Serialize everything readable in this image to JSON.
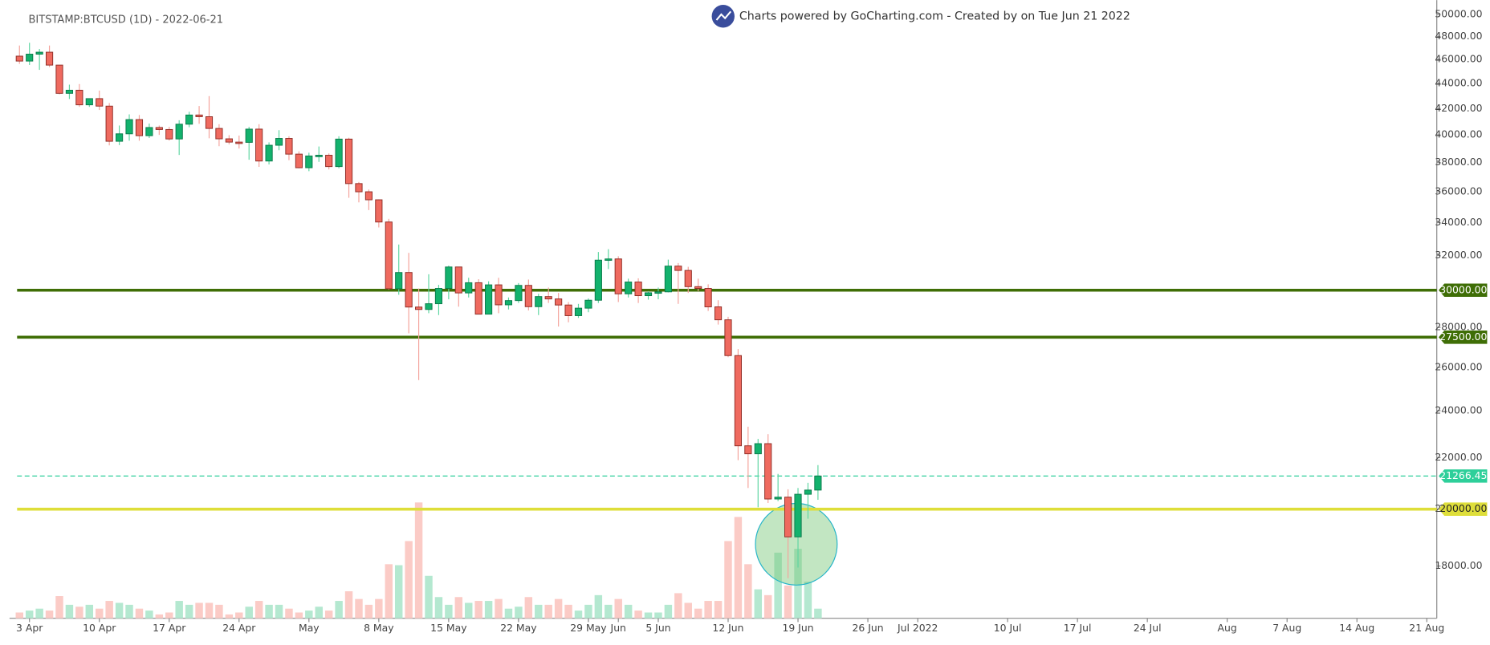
{
  "chart_data": {
    "type": "candlestick",
    "title": "BITSTAMP:BTCUSD (1D) - 2022-06-21",
    "subtitle": "Charts powered by GoCharting.com - Created by  on Tue Jun 21 2022",
    "log_scale": true,
    "up_color": "#13b26d",
    "down_color": "#ef6a5f",
    "x": [
      "2022-04-02",
      "2022-04-03",
      "2022-04-04",
      "2022-04-05",
      "2022-04-06",
      "2022-04-07",
      "2022-04-08",
      "2022-04-09",
      "2022-04-10",
      "2022-04-11",
      "2022-04-12",
      "2022-04-13",
      "2022-04-14",
      "2022-04-15",
      "2022-04-16",
      "2022-04-17",
      "2022-04-18",
      "2022-04-19",
      "2022-04-20",
      "2022-04-21",
      "2022-04-22",
      "2022-04-23",
      "2022-04-24",
      "2022-04-25",
      "2022-04-26",
      "2022-04-27",
      "2022-04-28",
      "2022-04-29",
      "2022-04-30",
      "2022-05-01",
      "2022-05-02",
      "2022-05-03",
      "2022-05-04",
      "2022-05-05",
      "2022-05-06",
      "2022-05-07",
      "2022-05-08",
      "2022-05-09",
      "2022-05-10",
      "2022-05-11",
      "2022-05-12",
      "2022-05-13",
      "2022-05-14",
      "2022-05-15",
      "2022-05-16",
      "2022-05-17",
      "2022-05-18",
      "2022-05-19",
      "2022-05-20",
      "2022-05-21",
      "2022-05-22",
      "2022-05-23",
      "2022-05-24",
      "2022-05-25",
      "2022-05-26",
      "2022-05-27",
      "2022-05-28",
      "2022-05-29",
      "2022-05-30",
      "2022-05-31",
      "2022-06-01",
      "2022-06-02",
      "2022-06-03",
      "2022-06-04",
      "2022-06-05",
      "2022-06-06",
      "2022-06-07",
      "2022-06-08",
      "2022-06-09",
      "2022-06-10",
      "2022-06-11",
      "2022-06-12",
      "2022-06-13",
      "2022-06-14",
      "2022-06-15",
      "2022-06-16",
      "2022-06-17",
      "2022-06-18",
      "2022-06-19",
      "2022-06-20",
      "2022-06-21"
    ],
    "open": [
      46280,
      45860,
      46450,
      46620,
      45520,
      43200,
      43450,
      42290,
      42780,
      42190,
      39530,
      40080,
      41150,
      39940,
      40550,
      40400,
      39700,
      40800,
      41500,
      41370,
      40480,
      39710,
      39470,
      39450,
      40430,
      38110,
      39240,
      39740,
      38600,
      37640,
      38470,
      38520,
      37720,
      39690,
      36550,
      36000,
      35470,
      34040,
      30080,
      31000,
      29080,
      28950,
      29260,
      30100,
      31320,
      29850,
      30420,
      28700,
      30300,
      29200,
      29430,
      30270,
      29100,
      29650,
      29520,
      29190,
      28620,
      29020,
      29450,
      31720,
      31790,
      29800,
      30460,
      29700,
      29860,
      29910,
      31370,
      31120,
      30200,
      30100,
      29090,
      28400,
      26580,
      22490,
      22160,
      22580,
      20380,
      20450,
      19000,
      20560,
      20720
    ],
    "high": [
      47200,
      47440,
      46900,
      47200,
      45520,
      43900,
      43950,
      42800,
      43420,
      42430,
      40700,
      41550,
      41500,
      40850,
      40700,
      40600,
      41100,
      41750,
      42200,
      42980,
      40800,
      39980,
      39950,
      40600,
      40800,
      39450,
      40350,
      39900,
      38800,
      38700,
      39150,
      38650,
      39900,
      39790,
      36660,
      36150,
      35500,
      34240,
      32650,
      32150,
      30100,
      30900,
      30300,
      31400,
      31320,
      30700,
      30620,
      30500,
      30700,
      29600,
      30400,
      30600,
      29800,
      30150,
      29850,
      29350,
      29250,
      29550,
      32200,
      32370,
      31950,
      30650,
      30670,
      29950,
      30150,
      31750,
      31550,
      31330,
      30650,
      30330,
      29450,
      28560,
      26900,
      23300,
      22780,
      22980,
      21350,
      20750,
      20800,
      21000,
      21700
    ],
    "low": [
      45620,
      45530,
      45120,
      45350,
      43120,
      42750,
      42130,
      42130,
      41890,
      39230,
      39250,
      39570,
      39570,
      39770,
      40000,
      39580,
      38540,
      40570,
      40830,
      39750,
      39170,
      39300,
      39000,
      38200,
      37700,
      37870,
      38880,
      38170,
      37600,
      37400,
      38050,
      37520,
      37600,
      35600,
      35300,
      34800,
      33700,
      30030,
      29750,
      27700,
      25400,
      28750,
      28650,
      29500,
      29100,
      29600,
      28700,
      28700,
      28750,
      28950,
      29300,
      28900,
      28650,
      29300,
      28050,
      28270,
      28500,
      28800,
      29300,
      31200,
      29350,
      29600,
      29300,
      29480,
      29500,
      29880,
      29250,
      29850,
      29950,
      28870,
      28150,
      26500,
      21900,
      20800,
      20070,
      20230,
      20300,
      17600,
      17950,
      19650,
      20350
    ],
    "close": [
      45860,
      46450,
      46620,
      45520,
      43200,
      43450,
      42290,
      42780,
      42190,
      39530,
      40080,
      41150,
      39940,
      40550,
      40400,
      39700,
      40800,
      41500,
      41370,
      40480,
      39710,
      39470,
      39450,
      40430,
      38110,
      39240,
      39740,
      38600,
      37640,
      38470,
      38520,
      37720,
      39690,
      36550,
      36000,
      35470,
      34040,
      30080,
      31000,
      29080,
      28950,
      29260,
      30100,
      31320,
      29850,
      30420,
      28700,
      30300,
      29200,
      29430,
      30270,
      29100,
      29650,
      29520,
      29190,
      28620,
      29020,
      29450,
      31720,
      31790,
      29800,
      30460,
      29700,
      29860,
      29910,
      31370,
      31120,
      30200,
      30100,
      29090,
      28400,
      26580,
      22490,
      22160,
      22580,
      20380,
      20450,
      19000,
      20560,
      20720,
      21266.45
    ],
    "volume": [
      6,
      8,
      10,
      8,
      23,
      14,
      12,
      14,
      10,
      18,
      16,
      14,
      10,
      8,
      4,
      6,
      18,
      14,
      16,
      16,
      14,
      4,
      6,
      12,
      18,
      14,
      14,
      10,
      6,
      8,
      12,
      8,
      18,
      28,
      20,
      14,
      20,
      56,
      55,
      80,
      120,
      44,
      22,
      14,
      22,
      16,
      18,
      18,
      20,
      10,
      12,
      22,
      14,
      14,
      20,
      14,
      8,
      14,
      24,
      14,
      20,
      14,
      8,
      6,
      6,
      14,
      26,
      16,
      10,
      18,
      18,
      80,
      105,
      56,
      30,
      24,
      68,
      34,
      72,
      38,
      10
    ],
    "volume_up_color": "#b4e8d0",
    "volume_down_color": "#fbcbc6",
    "xlim": [
      "2022-04-01",
      "2022-08-22"
    ],
    "xticks": [
      {
        "value": "2022-04-03",
        "label": "3 Apr"
      },
      {
        "value": "2022-04-10",
        "label": "10 Apr"
      },
      {
        "value": "2022-04-17",
        "label": "17 Apr"
      },
      {
        "value": "2022-04-24",
        "label": "24 Apr"
      },
      {
        "value": "2022-05-01",
        "label": "May"
      },
      {
        "value": "2022-05-08",
        "label": "8 May"
      },
      {
        "value": "2022-05-15",
        "label": "15 May"
      },
      {
        "value": "2022-05-22",
        "label": "22 May"
      },
      {
        "value": "2022-05-29",
        "label": "29 May"
      },
      {
        "value": "2022-06-01",
        "label": "Jun"
      },
      {
        "value": "2022-06-05",
        "label": "5 Jun"
      },
      {
        "value": "2022-06-12",
        "label": "12 Jun"
      },
      {
        "value": "2022-06-19",
        "label": "19 Jun"
      },
      {
        "value": "2022-06-26",
        "label": "26 Jun"
      },
      {
        "value": "2022-07-01",
        "label": "Jul 2022"
      },
      {
        "value": "2022-07-10",
        "label": "10 Jul"
      },
      {
        "value": "2022-07-17",
        "label": "17 Jul"
      },
      {
        "value": "2022-07-24",
        "label": "24 Jul"
      },
      {
        "value": "2022-08-01",
        "label": "Aug"
      },
      {
        "value": "2022-08-07",
        "label": "7 Aug"
      },
      {
        "value": "2022-08-14",
        "label": "14 Aug"
      },
      {
        "value": "2022-08-21",
        "label": "21 Aug"
      }
    ],
    "ylim": [
      16340,
      51340
    ],
    "yticks": [
      {
        "value": 18000,
        "label": "18000.00"
      },
      {
        "value": 20000,
        "label": "20000.00"
      },
      {
        "value": 22000,
        "label": "22000.00"
      },
      {
        "value": 24000,
        "label": "24000.00"
      },
      {
        "value": 26000,
        "label": "26000.00"
      },
      {
        "value": 28000,
        "label": "28000.00"
      },
      {
        "value": 32000,
        "label": "32000.00"
      },
      {
        "value": 34000,
        "label": "34000.00"
      },
      {
        "value": 36000,
        "label": "36000.00"
      },
      {
        "value": 38000,
        "label": "38000.00"
      },
      {
        "value": 40000,
        "label": "40000.00"
      },
      {
        "value": 42000,
        "label": "42000.00"
      },
      {
        "value": 44000,
        "label": "44000.00"
      },
      {
        "value": 46000,
        "label": "46000.00"
      },
      {
        "value": 48000,
        "label": "48000.00"
      },
      {
        "value": 50000,
        "label": "50000.00"
      }
    ],
    "lines": [
      {
        "value": 30000,
        "label": "30000.00",
        "color": "#3f6e06",
        "text_color": "#ffffff",
        "dashed": false
      },
      {
        "value": 27500,
        "label": "27500.00",
        "color": "#3f6e06",
        "text_color": "#ffffff",
        "dashed": false
      },
      {
        "value": 21266.45,
        "label": "21266.45",
        "color": "#2ecf9a",
        "text_color": "#ffffff",
        "dashed": true
      },
      {
        "value": 20000,
        "label": "20000.00",
        "color": "#dede3a",
        "text_color": "#222222",
        "dashed": false
      }
    ]
  }
}
